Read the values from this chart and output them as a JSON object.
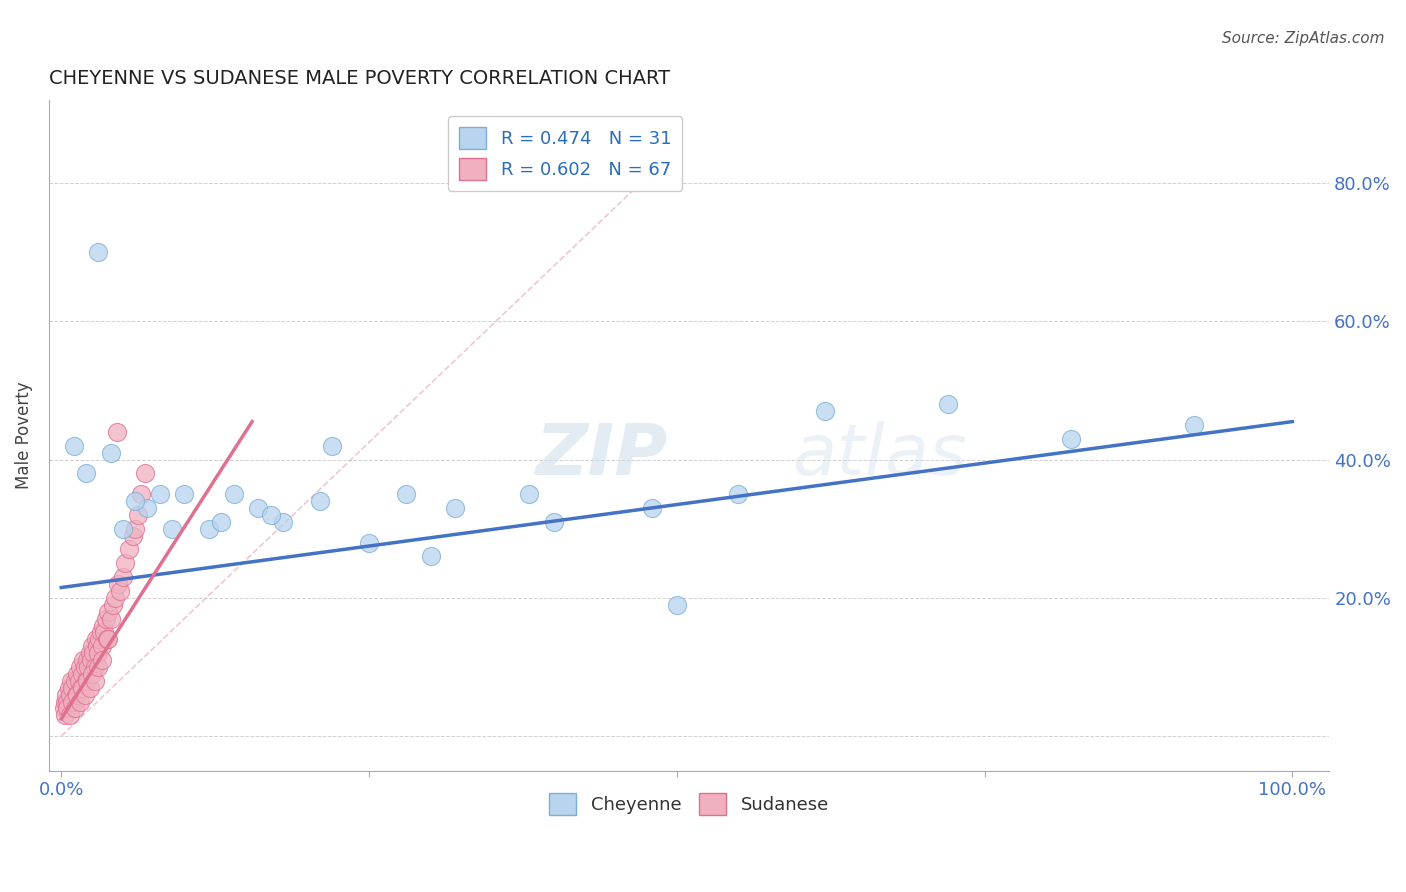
{
  "title": "CHEYENNE VS SUDANESE MALE POVERTY CORRELATION CHART",
  "source": "Source: ZipAtlas.com",
  "ylabel": "Male Poverty",
  "cheyenne_color": "#b8d4ee",
  "cheyenne_edge": "#7bafd4",
  "sudanese_color": "#f0b0c0",
  "sudanese_edge": "#e07090",
  "trend_blue_color": "#4472c4",
  "trend_pink_color": "#e07090",
  "legend_R_color": "#2a6ebb",
  "cheyenne_R": 0.474,
  "cheyenne_N": 31,
  "sudanese_R": 0.602,
  "sudanese_N": 67,
  "xlim": [
    -0.01,
    1.03
  ],
  "ylim": [
    -0.05,
    0.92
  ],
  "cheyenne_x": [
    0.01,
    0.02,
    0.04,
    0.05,
    0.07,
    0.08,
    0.1,
    0.12,
    0.14,
    0.16,
    0.18,
    0.21,
    0.25,
    0.28,
    0.32,
    0.38,
    0.48,
    0.55,
    0.62,
    0.72,
    0.82,
    0.92,
    0.03,
    0.06,
    0.09,
    0.13,
    0.17,
    0.22,
    0.3,
    0.4,
    0.5
  ],
  "cheyenne_y": [
    0.42,
    0.38,
    0.41,
    0.3,
    0.33,
    0.35,
    0.35,
    0.3,
    0.35,
    0.33,
    0.31,
    0.34,
    0.28,
    0.35,
    0.33,
    0.35,
    0.33,
    0.35,
    0.47,
    0.48,
    0.43,
    0.45,
    0.7,
    0.34,
    0.3,
    0.31,
    0.32,
    0.42,
    0.26,
    0.31,
    0.19
  ],
  "sudanese_x": [
    0.002,
    0.003,
    0.004,
    0.005,
    0.006,
    0.007,
    0.008,
    0.009,
    0.01,
    0.011,
    0.012,
    0.013,
    0.014,
    0.015,
    0.016,
    0.017,
    0.018,
    0.019,
    0.02,
    0.021,
    0.022,
    0.023,
    0.024,
    0.025,
    0.026,
    0.027,
    0.028,
    0.029,
    0.03,
    0.031,
    0.032,
    0.033,
    0.034,
    0.035,
    0.036,
    0.037,
    0.038,
    0.04,
    0.042,
    0.044,
    0.046,
    0.048,
    0.05,
    0.052,
    0.055,
    0.058,
    0.06,
    0.062,
    0.065,
    0.068,
    0.003,
    0.005,
    0.007,
    0.009,
    0.011,
    0.013,
    0.015,
    0.017,
    0.019,
    0.021,
    0.023,
    0.025,
    0.027,
    0.03,
    0.033,
    0.038,
    0.045
  ],
  "sudanese_y": [
    0.04,
    0.05,
    0.06,
    0.05,
    0.07,
    0.06,
    0.08,
    0.07,
    0.05,
    0.08,
    0.06,
    0.09,
    0.08,
    0.1,
    0.07,
    0.09,
    0.11,
    0.1,
    0.08,
    0.11,
    0.1,
    0.12,
    0.11,
    0.13,
    0.12,
    0.1,
    0.14,
    0.13,
    0.12,
    0.14,
    0.15,
    0.13,
    0.16,
    0.15,
    0.17,
    0.14,
    0.18,
    0.17,
    0.19,
    0.2,
    0.22,
    0.21,
    0.23,
    0.25,
    0.27,
    0.29,
    0.3,
    0.32,
    0.35,
    0.38,
    0.03,
    0.04,
    0.03,
    0.05,
    0.04,
    0.06,
    0.05,
    0.07,
    0.06,
    0.08,
    0.07,
    0.09,
    0.08,
    0.1,
    0.11,
    0.14,
    0.44
  ],
  "blue_line_x": [
    0.0,
    1.0
  ],
  "blue_line_y": [
    0.215,
    0.455
  ],
  "pink_line_x": [
    0.0,
    0.155
  ],
  "pink_line_y": [
    0.025,
    0.455
  ],
  "diag_line_x": [
    0.0,
    0.5
  ],
  "diag_line_y": [
    0.0,
    0.85
  ]
}
